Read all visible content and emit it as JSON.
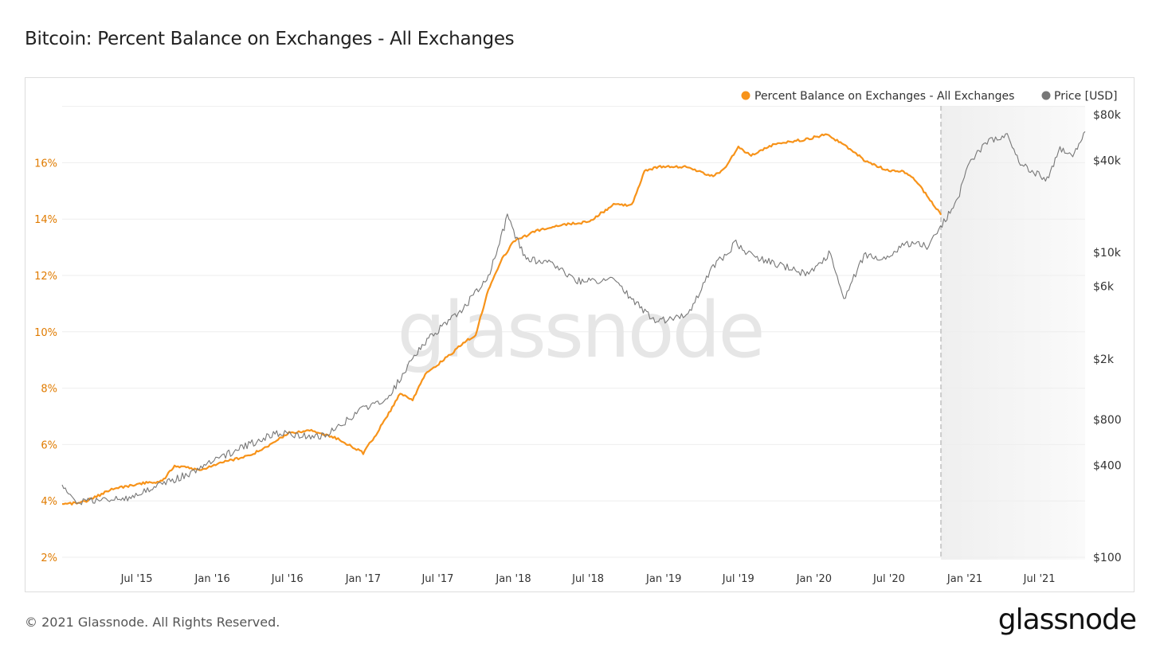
{
  "title": "Bitcoin: Percent Balance on Exchanges - All Exchanges",
  "footer": "© 2021 Glassnode. All Rights Reserved.",
  "logo": "glassnode",
  "watermark": "glassnode",
  "chart_data": {
    "type": "line",
    "title": "Bitcoin: Percent Balance on Exchanges - All Exchanges",
    "legend_position": "top-right",
    "grid": true,
    "x_range": [
      "2015-01-01",
      "2021-10-20"
    ],
    "x_ticks": [
      "Jul '15",
      "Jan '16",
      "Jul '16",
      "Jan '17",
      "Jul '17",
      "Jan '18",
      "Jul '18",
      "Jan '19",
      "Jul '19",
      "Jan '20",
      "Jul '20",
      "Jan '21",
      "Jul '21"
    ],
    "x_tick_dates": [
      "2015-07-01",
      "2016-01-01",
      "2016-07-01",
      "2017-01-01",
      "2017-07-01",
      "2018-01-01",
      "2018-07-01",
      "2019-01-01",
      "2019-07-01",
      "2020-01-01",
      "2020-07-01",
      "2021-01-01",
      "2021-07-01"
    ],
    "y_left": {
      "range": [
        2,
        18
      ],
      "ticks": [
        "2%",
        "4%",
        "6%",
        "8%",
        "10%",
        "12%",
        "14%",
        "16%"
      ],
      "tick_values": [
        2,
        4,
        6,
        8,
        10,
        12,
        14,
        16
      ],
      "color": "#e07b00"
    },
    "y_right": {
      "scale": "log",
      "range": [
        100,
        80000
      ],
      "ticks": [
        "$100",
        "$400",
        "$800",
        "$2k",
        "$6k",
        "$10k",
        "$40k",
        "$80k"
      ],
      "tick_values": [
        100,
        400,
        800,
        2000,
        6000,
        10000,
        40000,
        80000
      ]
    },
    "shaded_region_start": "2020-11-04",
    "series": [
      {
        "name": "Percent Balance on Exchanges - All Exchanges",
        "color": "#f7931a",
        "axis": "left",
        "points": [
          [
            "2015-01-01",
            3.85
          ],
          [
            "2015-03-01",
            4.0
          ],
          [
            "2015-05-01",
            4.4
          ],
          [
            "2015-07-01",
            4.6
          ],
          [
            "2015-09-01",
            4.7
          ],
          [
            "2015-10-01",
            5.25
          ],
          [
            "2015-12-01",
            5.1
          ],
          [
            "2016-02-01",
            5.4
          ],
          [
            "2016-04-01",
            5.6
          ],
          [
            "2016-06-01",
            6.1
          ],
          [
            "2016-07-01",
            6.4
          ],
          [
            "2016-09-01",
            6.5
          ],
          [
            "2016-11-01",
            6.2
          ],
          [
            "2017-01-01",
            5.7
          ],
          [
            "2017-02-01",
            6.35
          ],
          [
            "2017-04-01",
            7.8
          ],
          [
            "2017-05-01",
            7.6
          ],
          [
            "2017-06-01",
            8.5
          ],
          [
            "2017-08-01",
            9.2
          ],
          [
            "2017-09-01",
            9.6
          ],
          [
            "2017-10-01",
            9.9
          ],
          [
            "2017-11-01",
            11.5
          ],
          [
            "2017-12-01",
            12.5
          ],
          [
            "2018-01-01",
            13.2
          ],
          [
            "2018-03-01",
            13.6
          ],
          [
            "2018-05-01",
            13.8
          ],
          [
            "2018-07-01",
            13.9
          ],
          [
            "2018-09-01",
            14.5
          ],
          [
            "2018-10-15",
            14.5
          ],
          [
            "2018-11-15",
            15.7
          ],
          [
            "2018-12-15",
            15.85
          ],
          [
            "2019-03-01",
            15.85
          ],
          [
            "2019-05-01",
            15.5
          ],
          [
            "2019-06-01",
            15.85
          ],
          [
            "2019-07-01",
            16.55
          ],
          [
            "2019-08-01",
            16.25
          ],
          [
            "2019-10-01",
            16.7
          ],
          [
            "2019-12-01",
            16.8
          ],
          [
            "2020-02-01",
            17.0
          ],
          [
            "2020-03-01",
            16.75
          ],
          [
            "2020-04-01",
            16.45
          ],
          [
            "2020-05-01",
            16.1
          ],
          [
            "2020-07-01",
            15.7
          ],
          [
            "2020-08-01",
            15.7
          ],
          [
            "2020-09-01",
            15.4
          ],
          [
            "2020-10-01",
            14.85
          ],
          [
            "2020-11-04",
            14.15
          ]
        ]
      },
      {
        "name": "Price [USD]",
        "color": "#777777",
        "axis": "right",
        "points": [
          [
            "2015-01-01",
            300
          ],
          [
            "2015-02-01",
            230
          ],
          [
            "2015-06-01",
            240
          ],
          [
            "2015-11-01",
            350
          ],
          [
            "2016-01-01",
            430
          ],
          [
            "2016-06-01",
            650
          ],
          [
            "2016-10-01",
            620
          ],
          [
            "2017-01-01",
            950
          ],
          [
            "2017-03-01",
            1100
          ],
          [
            "2017-05-01",
            2000
          ],
          [
            "2017-06-01",
            2600
          ],
          [
            "2017-09-01",
            4300
          ],
          [
            "2017-11-01",
            7000
          ],
          [
            "2017-12-17",
            17000
          ],
          [
            "2018-02-01",
            9000
          ],
          [
            "2018-04-01",
            8500
          ],
          [
            "2018-06-01",
            6500
          ],
          [
            "2018-09-01",
            6500
          ],
          [
            "2018-11-20",
            4000
          ],
          [
            "2018-12-15",
            3500
          ],
          [
            "2019-03-01",
            4000
          ],
          [
            "2019-05-01",
            8000
          ],
          [
            "2019-06-25",
            11500
          ],
          [
            "2019-07-15",
            10000
          ],
          [
            "2019-09-25",
            8500
          ],
          [
            "2019-12-15",
            7200
          ],
          [
            "2020-02-10",
            10000
          ],
          [
            "2020-03-13",
            5000
          ],
          [
            "2020-05-01",
            9500
          ],
          [
            "2020-07-01",
            9200
          ],
          [
            "2020-08-10",
            11500
          ],
          [
            "2020-10-01",
            11000
          ],
          [
            "2020-11-15",
            16500
          ],
          [
            "2020-12-15",
            22000
          ],
          [
            "2021-01-08",
            38000
          ],
          [
            "2021-02-20",
            52000
          ],
          [
            "2021-04-14",
            60000
          ],
          [
            "2021-05-20",
            37000
          ],
          [
            "2021-07-20",
            30000
          ],
          [
            "2021-08-20",
            47000
          ],
          [
            "2021-09-20",
            43000
          ],
          [
            "2021-10-20",
            62000
          ]
        ]
      }
    ]
  }
}
